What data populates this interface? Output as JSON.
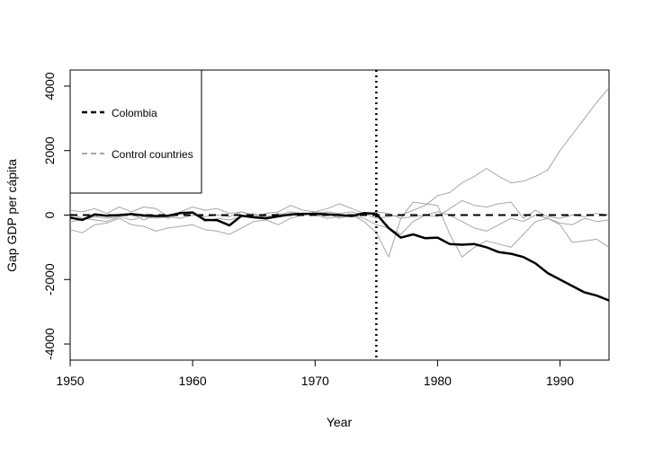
{
  "chart_data": {
    "type": "line",
    "title": "",
    "xlabel": "Year",
    "ylabel": "Gap GDP per cápita",
    "xlim": [
      1950,
      1994
    ],
    "ylim": [
      -4500,
      4500
    ],
    "x_ticks": [
      "1950",
      "1960",
      "1970",
      "1980",
      "1990"
    ],
    "y_ticks": [
      "-4000",
      "-2000",
      "0",
      "2000",
      "4000"
    ],
    "legend": {
      "position": "top-left",
      "entries": [
        {
          "label": "Colombia",
          "color": "#000000",
          "style": "dashed"
        },
        {
          "label": "Control countries",
          "color": "#a6a6a6",
          "style": "dashed"
        }
      ]
    },
    "reference_lines": {
      "horizontal_zero": {
        "y": 0,
        "style": "dashed",
        "color": "#000000"
      },
      "treatment_year": {
        "x": 1975,
        "style": "dotted",
        "color": "#000000"
      }
    },
    "x": [
      1950,
      1951,
      1952,
      1953,
      1954,
      1955,
      1956,
      1957,
      1958,
      1959,
      1960,
      1961,
      1962,
      1963,
      1964,
      1965,
      1966,
      1967,
      1968,
      1969,
      1970,
      1971,
      1972,
      1973,
      1974,
      1975,
      1976,
      1977,
      1978,
      1979,
      1980,
      1981,
      1982,
      1983,
      1984,
      1985,
      1986,
      1987,
      1988,
      1989,
      1990,
      1991,
      1992,
      1993,
      1994
    ],
    "series": [
      {
        "name": "Colombia",
        "color": "#000000",
        "width": 2.5,
        "values": [
          -80,
          -150,
          20,
          -20,
          0,
          30,
          -10,
          -30,
          -20,
          60,
          80,
          -150,
          -160,
          -320,
          -20,
          -70,
          -100,
          -40,
          20,
          40,
          40,
          20,
          0,
          -30,
          60,
          40,
          -400,
          -700,
          -600,
          -720,
          -700,
          -900,
          -920,
          -900,
          -1000,
          -1150,
          -1200,
          -1300,
          -1500,
          -1800,
          -2000,
          -2200,
          -2400,
          -2500,
          -2650
        ]
      },
      {
        "name": "",
        "color": "#a6a6a6",
        "width": 1,
        "values": [
          150,
          100,
          200,
          50,
          250,
          100,
          250,
          200,
          -50,
          100,
          250,
          150,
          200,
          50,
          100,
          -50,
          50,
          100,
          300,
          150,
          100,
          200,
          350,
          200,
          50,
          -100,
          -50,
          0,
          150,
          300,
          600,
          700,
          1000,
          1200,
          1450,
          1200,
          1000,
          1050,
          1200,
          1400,
          2000,
          2500,
          3000,
          3500,
          3950
        ]
      },
      {
        "name": "",
        "color": "#a6a6a6",
        "width": 1,
        "values": [
          -450,
          -550,
          -300,
          -250,
          -100,
          -300,
          -350,
          -500,
          -400,
          -350,
          -300,
          -450,
          -500,
          -600,
          -400,
          -200,
          -150,
          -300,
          -100,
          0,
          100,
          50,
          -100,
          0,
          -200,
          -550,
          -1300,
          -100,
          400,
          350,
          300,
          -600,
          -1300,
          -1000,
          -800,
          -900,
          -1000,
          -600,
          -200,
          -100,
          -300,
          -850,
          -800,
          -750,
          -1000
        ]
      },
      {
        "name": "",
        "color": "#a6a6a6",
        "width": 1,
        "values": [
          50,
          -100,
          -150,
          -200,
          -50,
          50,
          -150,
          0,
          -100,
          50,
          100,
          -200,
          -100,
          -150,
          -50,
          50,
          -100,
          0,
          100,
          50,
          0,
          -100,
          -50,
          0,
          -100,
          -300,
          -400,
          -600,
          -200,
          0,
          100,
          0,
          -200,
          -400,
          -500,
          -300,
          -100,
          -200,
          0,
          -100,
          -250,
          -300,
          -100,
          -200,
          -150
        ]
      },
      {
        "name": "",
        "color": "#a6a6a6",
        "width": 1,
        "values": [
          -200,
          -150,
          -50,
          -100,
          -50,
          -150,
          -50,
          -100,
          -50,
          -100,
          0,
          -50,
          0,
          -50,
          100,
          0,
          -50,
          50,
          0,
          0,
          50,
          100,
          50,
          100,
          0,
          100,
          50,
          -100,
          -50,
          0,
          -50,
          200,
          450,
          300,
          250,
          350,
          400,
          -100,
          150,
          -50,
          -100,
          0,
          -50,
          50,
          0
        ]
      }
    ]
  }
}
